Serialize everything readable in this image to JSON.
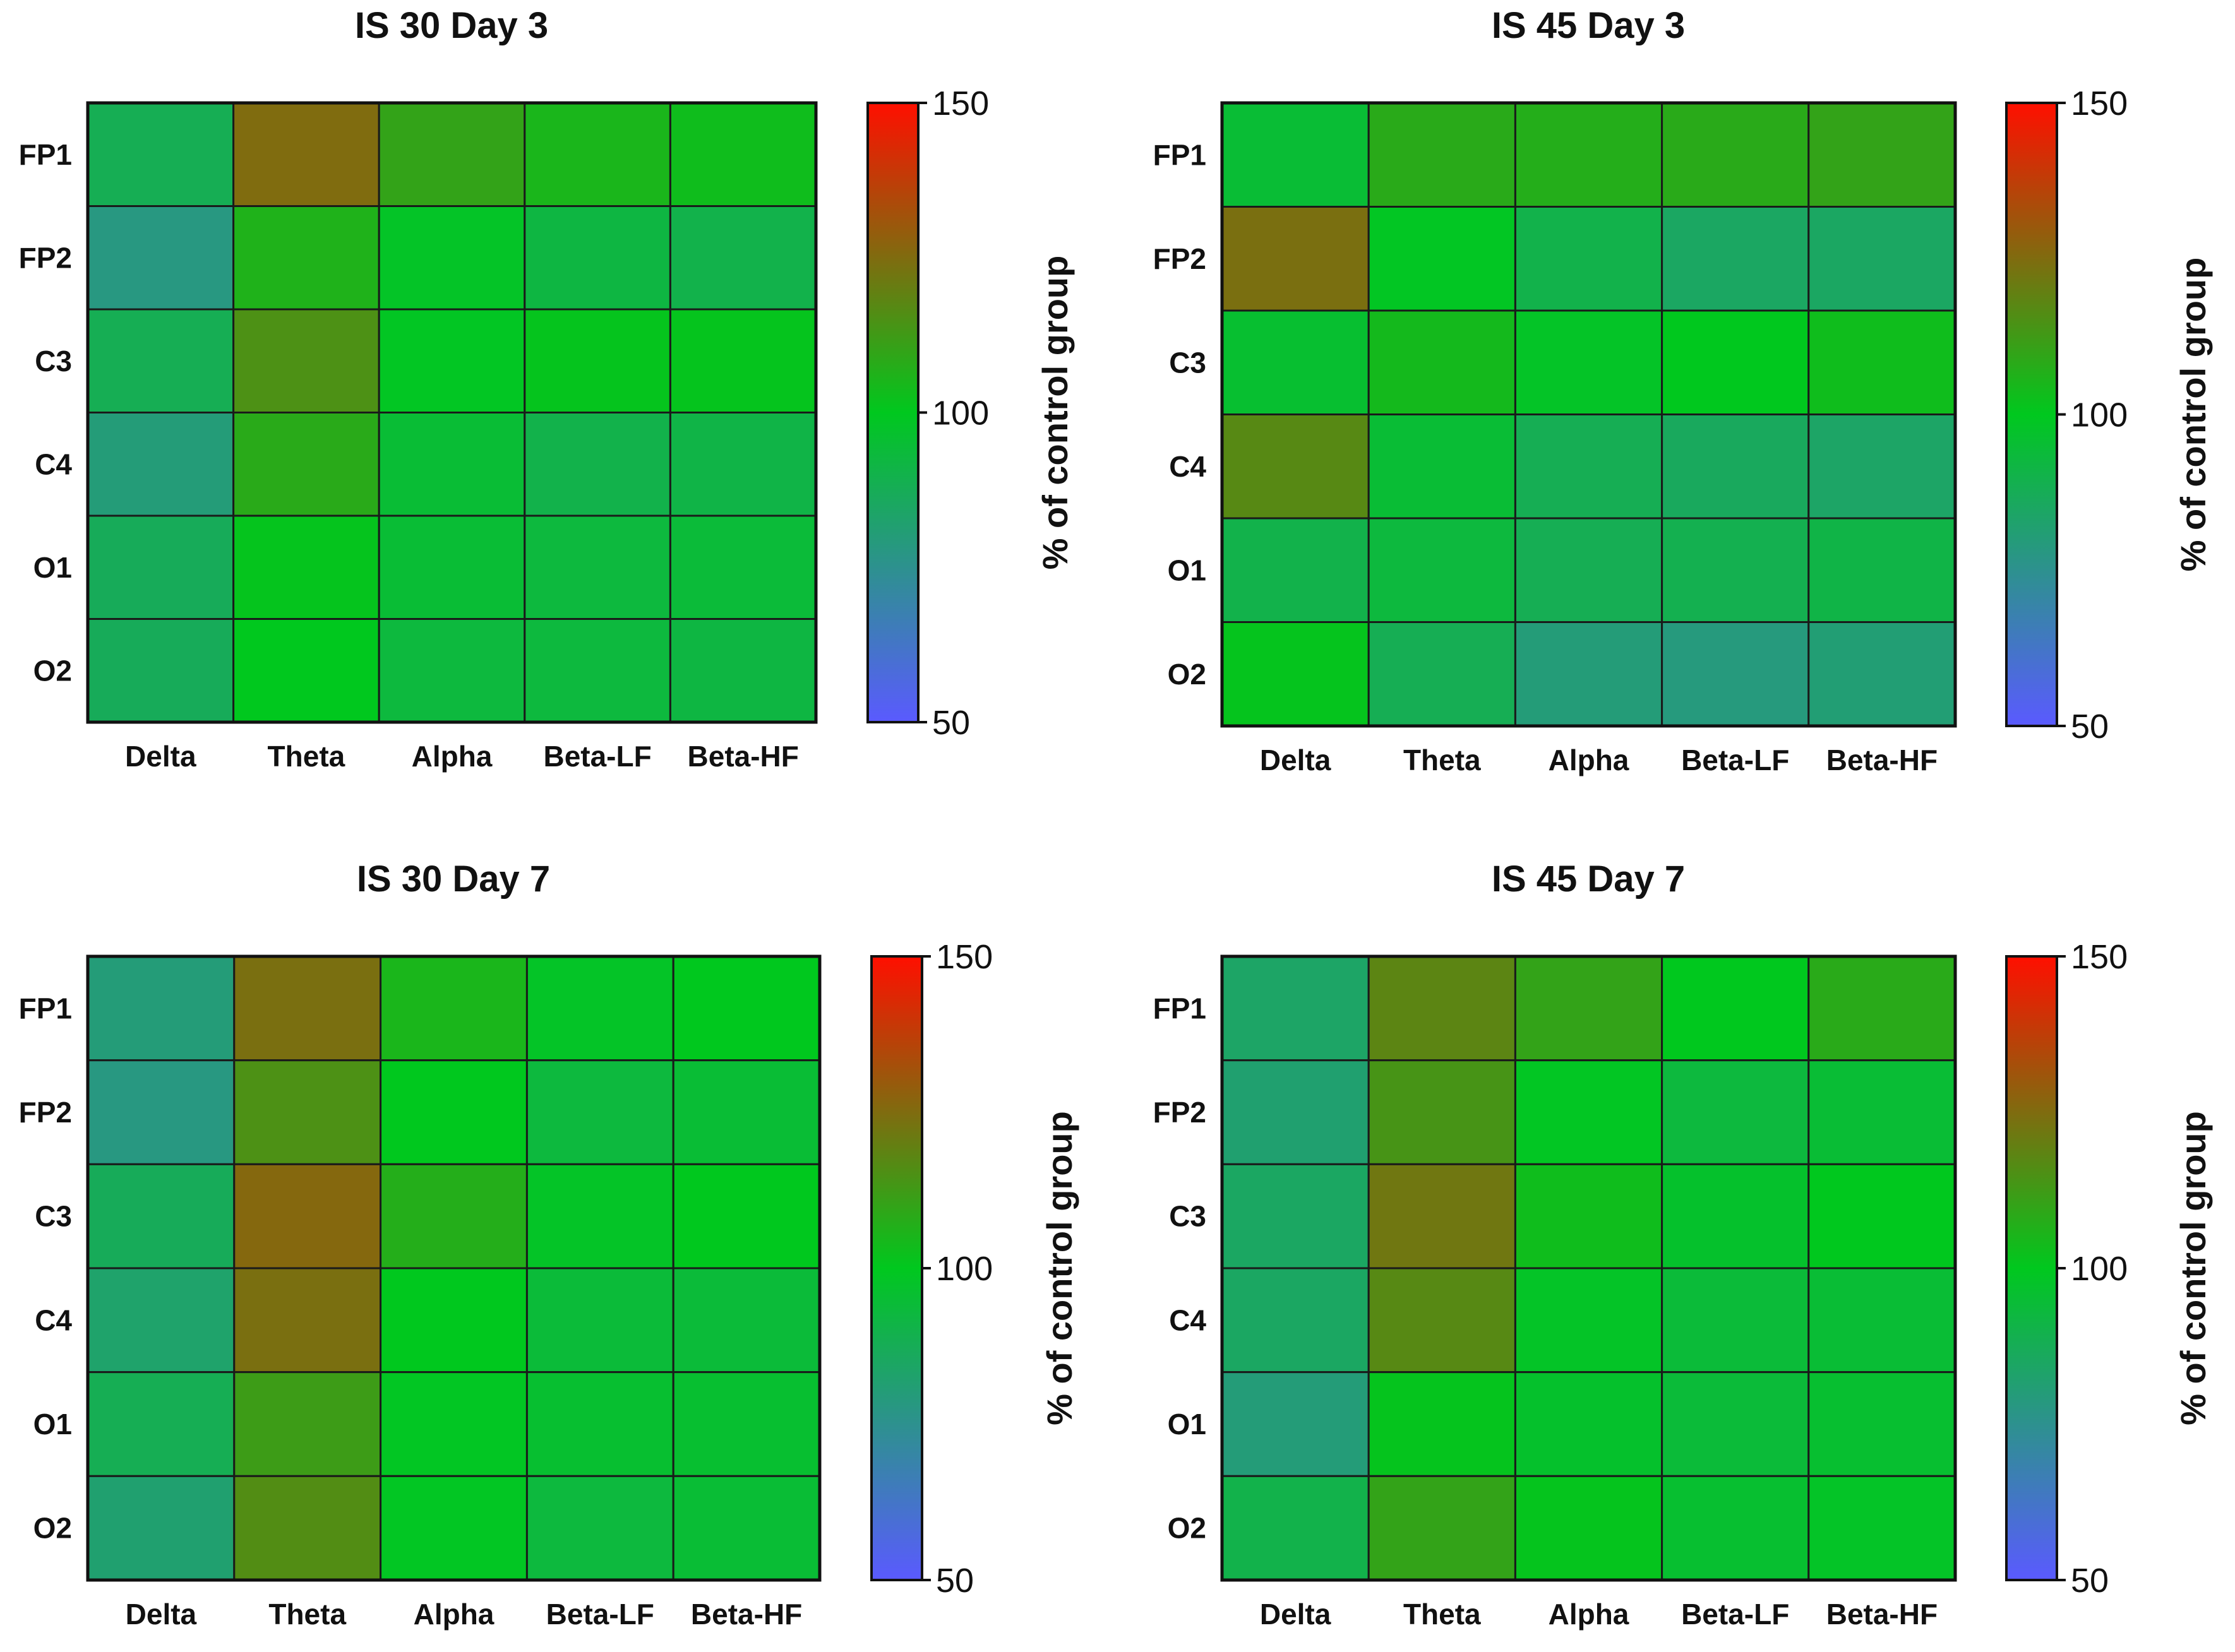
{
  "colormap": {
    "low": "#5a5aff",
    "mid": "#00c81e",
    "high": "#ff0f00"
  },
  "chart_data": [
    {
      "type": "heatmap",
      "title": "IS 30 Day 3",
      "x_categories": [
        "Delta",
        "Theta",
        "Alpha",
        "Beta-LF",
        "Beta-HF"
      ],
      "y_categories": [
        "FP1",
        "FP2",
        "C3",
        "C4",
        "O1",
        "O2"
      ],
      "values": [
        [
          88,
          125,
          110,
          105,
          103
        ],
        [
          78,
          106,
          98,
          92,
          90
        ],
        [
          88,
          115,
          99,
          101,
          101
        ],
        [
          80,
          108,
          95,
          90,
          91
        ],
        [
          87,
          101,
          95,
          93,
          94
        ],
        [
          87,
          100,
          93,
          93,
          92
        ]
      ],
      "colorbar": {
        "min": 50,
        "mid": 100,
        "max": 150,
        "ticks": [
          "50",
          "100",
          "150"
        ],
        "label": "% of control group"
      }
    },
    {
      "type": "heatmap",
      "title": "IS 45 Day 3",
      "x_categories": [
        "Delta",
        "Theta",
        "Alpha",
        "Beta-LF",
        "Beta-HF"
      ],
      "y_categories": [
        "FP1",
        "FP2",
        "C3",
        "C4",
        "O1",
        "O2"
      ],
      "values": [
        [
          95,
          108,
          107,
          108,
          110
        ],
        [
          124,
          99,
          90,
          85,
          85
        ],
        [
          96,
          104,
          98,
          100,
          103
        ],
        [
          117,
          95,
          88,
          86,
          84
        ],
        [
          90,
          93,
          88,
          89,
          91
        ],
        [
          101,
          88,
          80,
          79,
          81
        ]
      ],
      "colorbar": {
        "min": 50,
        "mid": 100,
        "max": 150,
        "ticks": [
          "50",
          "100",
          "150"
        ],
        "label": "% of control group"
      }
    },
    {
      "type": "heatmap",
      "title": "IS 30 Day 7",
      "x_categories": [
        "Delta",
        "Theta",
        "Alpha",
        "Beta-LF",
        "Beta-HF"
      ],
      "y_categories": [
        "FP1",
        "FP2",
        "C3",
        "C4",
        "O1",
        "O2"
      ],
      "values": [
        [
          80,
          124,
          105,
          98,
          100
        ],
        [
          78,
          115,
          100,
          93,
          95
        ],
        [
          87,
          126,
          107,
          98,
          100
        ],
        [
          83,
          124,
          100,
          94,
          94
        ],
        [
          88,
          112,
          99,
          96,
          96
        ],
        [
          82,
          116,
          99,
          93,
          95
        ]
      ],
      "colorbar": {
        "min": 50,
        "mid": 100,
        "max": 150,
        "ticks": [
          "50",
          "100",
          "150"
        ],
        "label": "% of control group"
      }
    },
    {
      "type": "heatmap",
      "title": "IS 45 Day 7",
      "x_categories": [
        "Delta",
        "Theta",
        "Alpha",
        "Beta-LF",
        "Beta-HF"
      ],
      "y_categories": [
        "FP1",
        "FP2",
        "C3",
        "C4",
        "O1",
        "O2"
      ],
      "values": [
        [
          84,
          118,
          110,
          100,
          108
        ],
        [
          82,
          114,
          99,
          93,
          95
        ],
        [
          85,
          122,
          103,
          97,
          100
        ],
        [
          85,
          117,
          98,
          94,
          95
        ],
        [
          80,
          101,
          97,
          94,
          96
        ],
        [
          90,
          110,
          101,
          96,
          98
        ]
      ],
      "colorbar": {
        "min": 50,
        "mid": 100,
        "max": 150,
        "ticks": [
          "50",
          "100",
          "150"
        ],
        "label": "% of control group"
      }
    }
  ]
}
